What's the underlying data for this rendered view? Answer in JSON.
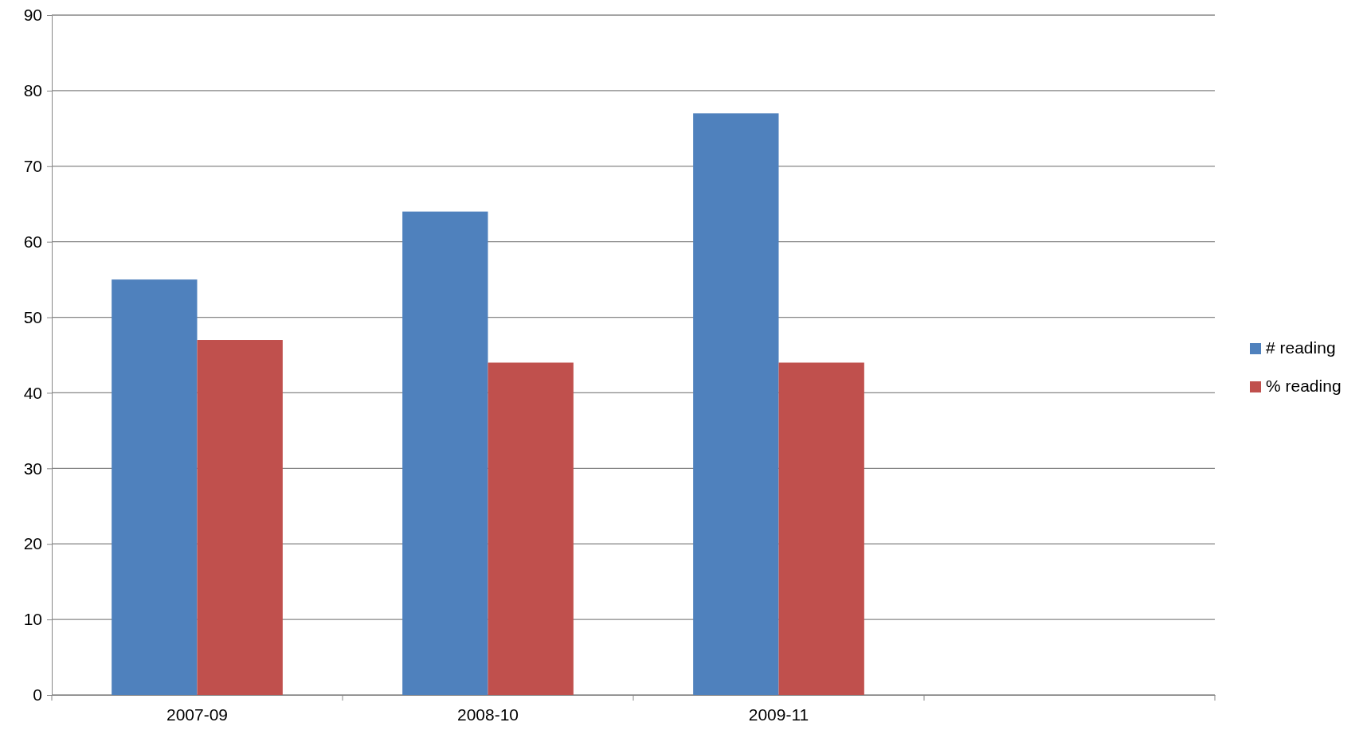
{
  "chart_data": {
    "type": "bar",
    "categories": [
      "2007-09",
      "2008-10",
      "2009-11",
      null
    ],
    "series": [
      {
        "name": "# reading",
        "color": "#4f81bd",
        "values": [
          55,
          64,
          77,
          null
        ]
      },
      {
        "name": "% reading",
        "color": "#c0504d",
        "values": [
          47,
          44,
          44,
          null
        ]
      }
    ],
    "ylim": [
      0,
      90
    ],
    "yticks": [
      0,
      10,
      20,
      30,
      40,
      50,
      60,
      70,
      80,
      90
    ],
    "grid": "y",
    "legend": "right"
  }
}
